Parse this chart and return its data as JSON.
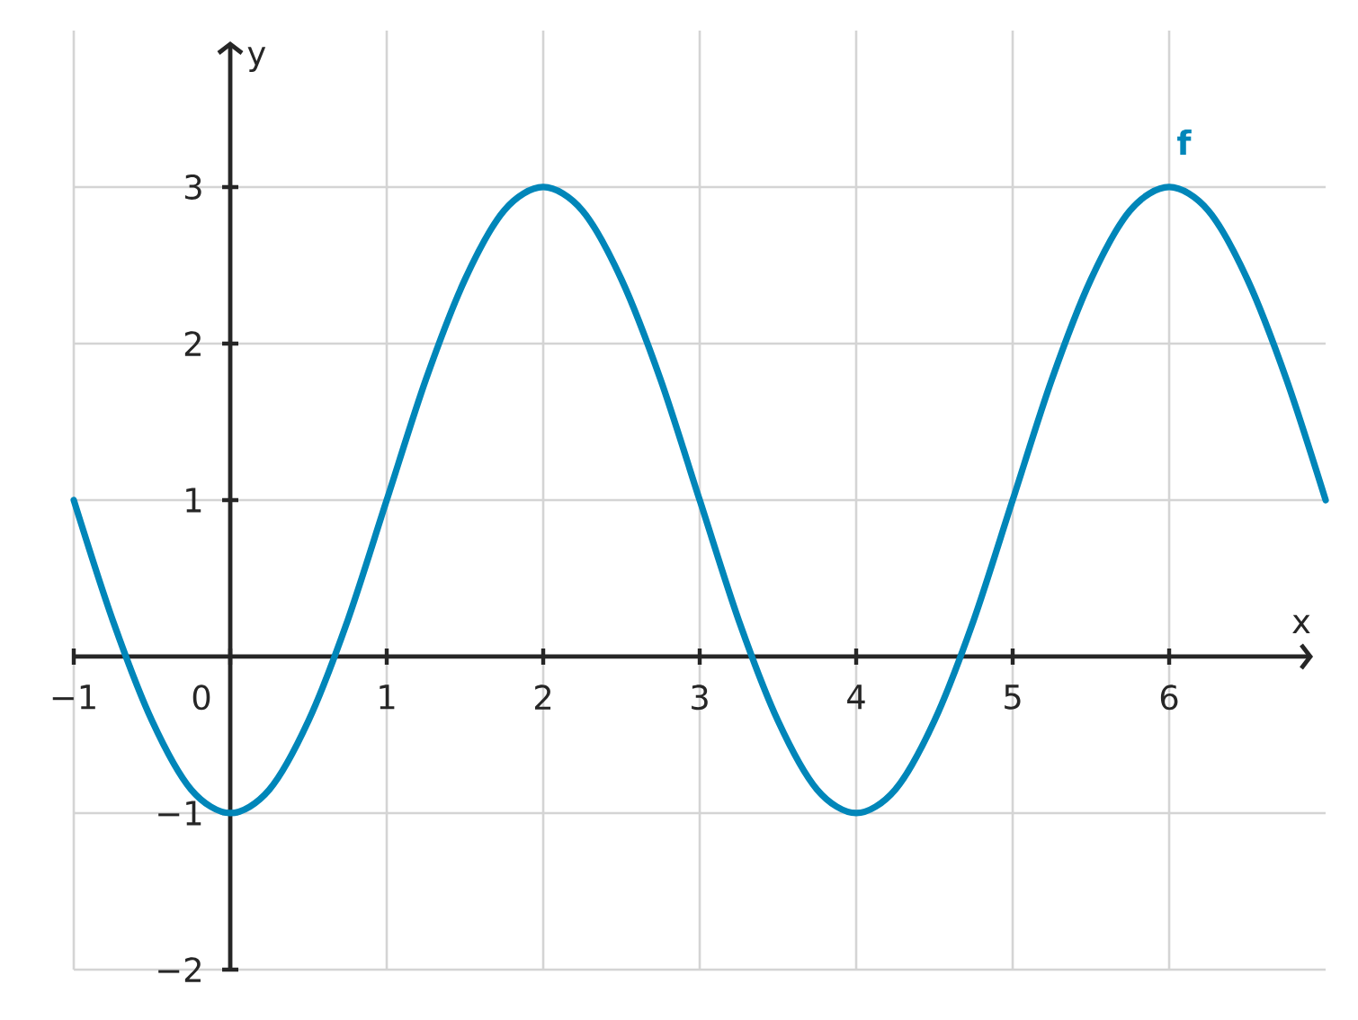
{
  "chart_data": {
    "type": "line",
    "xlabel": "x",
    "ylabel": "y",
    "x": [
      -1,
      -0.75,
      -0.5,
      -0.25,
      0,
      0.25,
      0.5,
      0.75,
      1,
      1.25,
      1.5,
      1.75,
      2,
      2.25,
      2.5,
      2.75,
      3,
      3.25,
      3.5,
      3.75,
      4,
      4.25,
      4.5,
      4.75,
      5,
      5.25,
      5.5,
      5.75,
      6,
      6.25,
      6.5,
      6.75,
      7
    ],
    "series": [
      {
        "name": "f",
        "color": "#0086b9",
        "values": [
          1,
          0.23,
          -0.41,
          -0.85,
          -1,
          -0.85,
          -0.41,
          0.23,
          1,
          1.77,
          2.41,
          2.85,
          3,
          2.85,
          2.41,
          1.77,
          1,
          0.23,
          -0.41,
          -0.85,
          -1,
          -0.85,
          -0.41,
          0.23,
          1,
          1.77,
          2.41,
          2.85,
          3,
          2.85,
          2.41,
          1.77,
          1
        ]
      }
    ],
    "xlim": [
      -1,
      7
    ],
    "ylim": [
      -2,
      4
    ],
    "xticks": [
      {
        "value": -1,
        "label": "−1"
      },
      0,
      1,
      2,
      3,
      4,
      5,
      6
    ],
    "yticks": [
      {
        "value": -2,
        "label": "−2"
      },
      {
        "value": -1,
        "label": "−1"
      },
      1,
      2,
      3
    ],
    "grid": true
  }
}
